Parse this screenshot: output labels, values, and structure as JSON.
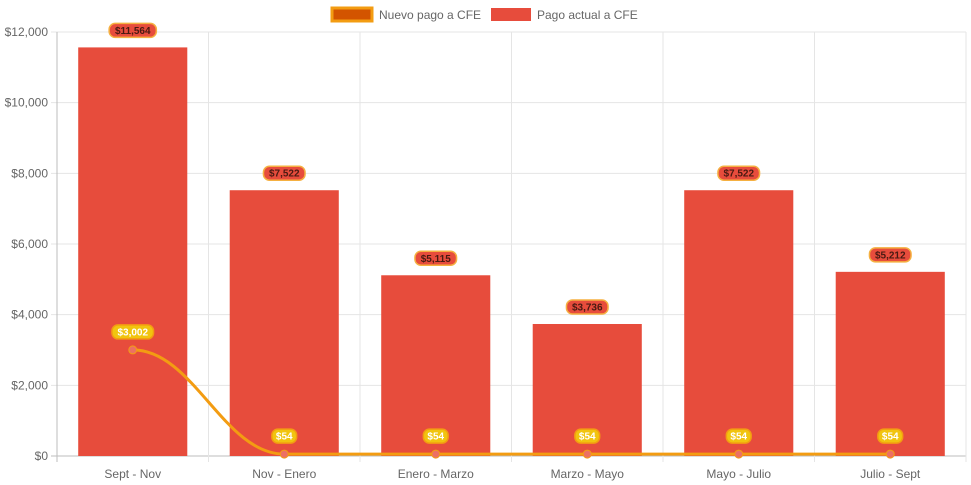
{
  "chart_data": {
    "type": "bar",
    "categories": [
      "Sept - Nov",
      "Nov - Enero",
      "Enero - Marzo",
      "Marzo - Mayo",
      "Mayo - Julio",
      "Julio - Sept"
    ],
    "y_ticks": [
      "$0",
      "$2,000",
      "$4,000",
      "$6,000",
      "$8,000",
      "$10,000",
      "$12,000"
    ],
    "ylim": [
      0,
      12000
    ],
    "grid": true,
    "legend_position": "top-center",
    "series": [
      {
        "name": "Nuevo pago a CFE",
        "render": "line",
        "color": "#f39c12",
        "legend_fill": "#d35400",
        "values": [
          3002,
          54,
          54,
          54,
          54,
          54
        ],
        "labels": [
          "$3,002",
          "$54",
          "$54",
          "$54",
          "$54",
          "$54"
        ]
      },
      {
        "name": "Pago actual a CFE",
        "render": "bar",
        "color": "#e74c3c",
        "values": [
          11564,
          7522,
          5115,
          3736,
          7522,
          5212
        ],
        "labels": [
          "$11,564",
          "$7,522",
          "$5,115",
          "$3,736",
          "$7,522",
          "$5,212"
        ]
      }
    ]
  }
}
